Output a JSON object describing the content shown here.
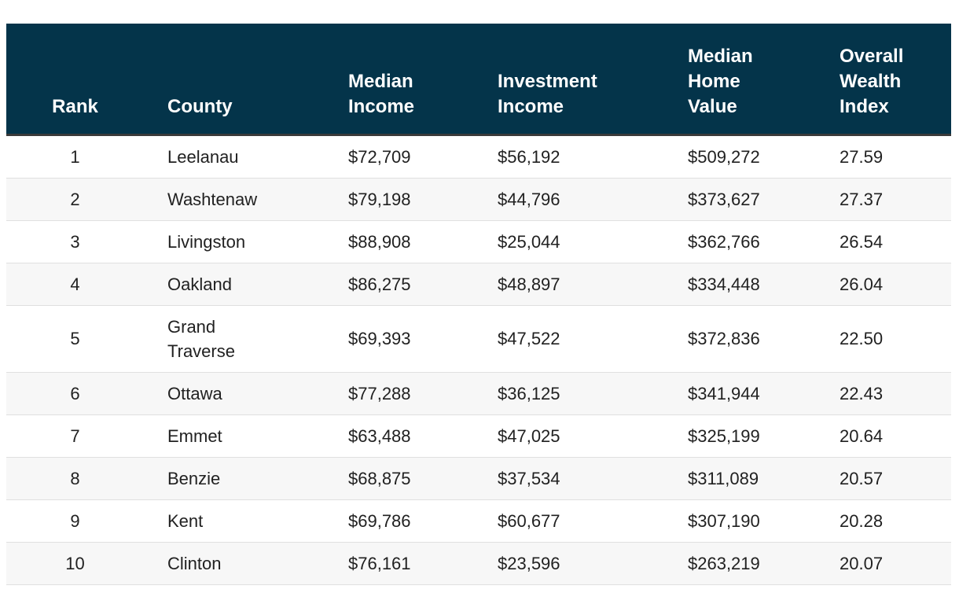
{
  "chart_data": {
    "type": "table",
    "title": "",
    "columns": [
      "Rank",
      "County",
      "Median Income",
      "Investment Income",
      "Median Home Value",
      "Overall Wealth Index"
    ],
    "rows": [
      [
        1,
        "Leelanau",
        "$72,709",
        "$56,192",
        "$509,272",
        27.59
      ],
      [
        2,
        "Washtenaw",
        "$79,198",
        "$44,796",
        "$373,627",
        27.37
      ],
      [
        3,
        "Livingston",
        "$88,908",
        "$25,044",
        "$362,766",
        26.54
      ],
      [
        4,
        "Oakland",
        "$86,275",
        "$48,897",
        "$334,448",
        26.04
      ],
      [
        5,
        "Grand Traverse",
        "$69,393",
        "$47,522",
        "$372,836",
        22.5
      ],
      [
        6,
        "Ottawa",
        "$77,288",
        "$36,125",
        "$341,944",
        22.43
      ],
      [
        7,
        "Emmet",
        "$63,488",
        "$47,025",
        "$325,199",
        20.64
      ],
      [
        8,
        "Benzie",
        "$68,875",
        "$37,534",
        "$311,089",
        20.57
      ],
      [
        9,
        "Kent",
        "$69,786",
        "$60,677",
        "$307,190",
        20.28
      ],
      [
        10,
        "Clinton",
        "$76,161",
        "$23,596",
        "$263,219",
        20.07
      ]
    ],
    "layout": {
      "grid": "horizontal-row-dividers",
      "striped_rows": true,
      "header_position": "top"
    }
  },
  "table": {
    "headers": [
      "Rank",
      "County",
      "Median\nIncome",
      "Investment\nIncome",
      "Median\nHome\nValue",
      "Overall\nWealth\nIndex"
    ],
    "rows": [
      {
        "rank": "1",
        "county": "Leelanau",
        "median_income": "$72,709",
        "investment_income": "$56,192",
        "median_home_value": "$509,272",
        "wealth_index": "27.59"
      },
      {
        "rank": "2",
        "county": "Washtenaw",
        "median_income": "$79,198",
        "investment_income": "$44,796",
        "median_home_value": "$373,627",
        "wealth_index": "27.37"
      },
      {
        "rank": "3",
        "county": "Livingston",
        "median_income": "$88,908",
        "investment_income": "$25,044",
        "median_home_value": "$362,766",
        "wealth_index": "26.54"
      },
      {
        "rank": "4",
        "county": "Oakland",
        "median_income": "$86,275",
        "investment_income": "$48,897",
        "median_home_value": "$334,448",
        "wealth_index": "26.04"
      },
      {
        "rank": "5",
        "county": "Grand\nTraverse",
        "median_income": "$69,393",
        "investment_income": "$47,522",
        "median_home_value": "$372,836",
        "wealth_index": "22.50"
      },
      {
        "rank": "6",
        "county": "Ottawa",
        "median_income": "$77,288",
        "investment_income": "$36,125",
        "median_home_value": "$341,944",
        "wealth_index": "22.43"
      },
      {
        "rank": "7",
        "county": "Emmet",
        "median_income": "$63,488",
        "investment_income": "$47,025",
        "median_home_value": "$325,199",
        "wealth_index": "20.64"
      },
      {
        "rank": "8",
        "county": "Benzie",
        "median_income": "$68,875",
        "investment_income": "$37,534",
        "median_home_value": "$311,089",
        "wealth_index": "20.57"
      },
      {
        "rank": "9",
        "county": "Kent",
        "median_income": "$69,786",
        "investment_income": "$60,677",
        "median_home_value": "$307,190",
        "wealth_index": "20.28"
      },
      {
        "rank": "10",
        "county": "Clinton",
        "median_income": "$76,161",
        "investment_income": "$23,596",
        "median_home_value": "$263,219",
        "wealth_index": "20.07"
      }
    ]
  },
  "colors": {
    "header_bg": "#04344a",
    "header_text": "#ffffff",
    "header_border": "#3a3a3a",
    "row_border": "#e0e0e0",
    "stripe_bg": "#f7f7f7",
    "body_text": "#212121",
    "page_bg": "#ffffff"
  }
}
